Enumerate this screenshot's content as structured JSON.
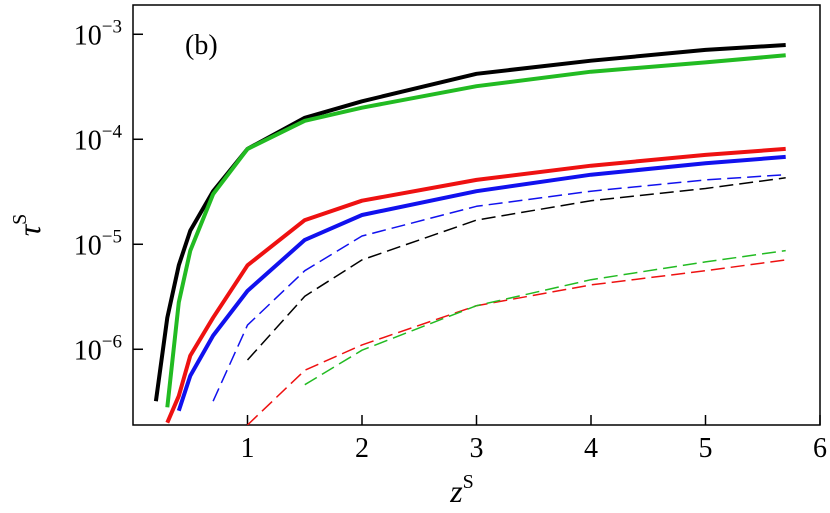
{
  "chart_data": {
    "type": "line",
    "annotation": "(b)",
    "xlabel": "zS",
    "ylabel": "τS",
    "x": [
      0.2,
      0.3,
      0.4,
      0.5,
      0.7,
      1,
      1.5,
      2,
      3,
      4,
      5,
      5.7
    ],
    "series": [
      {
        "color": "#000000",
        "width": 4,
        "dash": false,
        "values": [
          3.2e-07,
          2e-06,
          6.3e-06,
          1.35e-05,
          3.2e-05,
          8.1e-05,
          0.00016,
          0.00023,
          0.00042,
          0.00056,
          0.00071,
          0.00079
        ]
      },
      {
        "color": "#22bb22",
        "width": 4,
        "dash": false,
        "values": [
          null,
          2.8e-07,
          2.8e-06,
          8.7e-06,
          3e-05,
          8.1e-05,
          0.00015,
          0.0002,
          0.00032,
          0.00044,
          0.00054,
          0.00063
        ]
      },
      {
        "color": "#ee1111",
        "width": 4,
        "dash": false,
        "values": [
          null,
          2e-07,
          3.6e-07,
          8.7e-07,
          2e-06,
          6.3e-06,
          1.7e-05,
          2.6e-05,
          4.1e-05,
          5.6e-05,
          7.1e-05,
          8.1e-05
        ]
      },
      {
        "color": "#1111ee",
        "width": 4,
        "dash": false,
        "values": [
          null,
          null,
          2.6e-07,
          5.6e-07,
          1.35e-06,
          3.6e-06,
          1.1e-05,
          1.9e-05,
          3.2e-05,
          4.6e-05,
          5.9e-05,
          6.8e-05
        ]
      },
      {
        "color": "#1111ee",
        "width": 1.5,
        "dash": true,
        "values": [
          null,
          null,
          null,
          null,
          3.2e-07,
          1.7e-06,
          5.6e-06,
          1.2e-05,
          2.3e-05,
          3.2e-05,
          4.1e-05,
          4.6e-05
        ]
      },
      {
        "color": "#000000",
        "width": 1.5,
        "dash": true,
        "values": [
          null,
          null,
          null,
          null,
          null,
          7.9e-07,
          3.2e-06,
          7.1e-06,
          1.7e-05,
          2.6e-05,
          3.4e-05,
          4.3e-05
        ]
      },
      {
        "color": "#ee1111",
        "width": 1.5,
        "dash": true,
        "values": [
          null,
          null,
          null,
          null,
          null,
          1.9e-07,
          6.3e-07,
          1.1e-06,
          2.6e-06,
          4.1e-06,
          5.6e-06,
          7.1e-06
        ]
      },
      {
        "color": "#22bb22",
        "width": 1.5,
        "dash": true,
        "values": [
          null,
          null,
          null,
          null,
          null,
          null,
          4.6e-07,
          9.8e-07,
          2.6e-06,
          4.6e-06,
          6.8e-06,
          8.7e-06
        ]
      }
    ],
    "xlim": [
      0,
      6
    ],
    "xticks": [
      1,
      2,
      3,
      4,
      5,
      6
    ],
    "ylim": [
      1.9e-07,
      0.0019
    ],
    "log_y": true,
    "yticks": [
      {
        "value": 0.001,
        "label": "10−3"
      },
      {
        "value": 0.0001,
        "label": "10−4"
      },
      {
        "value": 1e-05,
        "label": "10−5"
      },
      {
        "value": 1e-06,
        "label": "10−6"
      }
    ]
  }
}
